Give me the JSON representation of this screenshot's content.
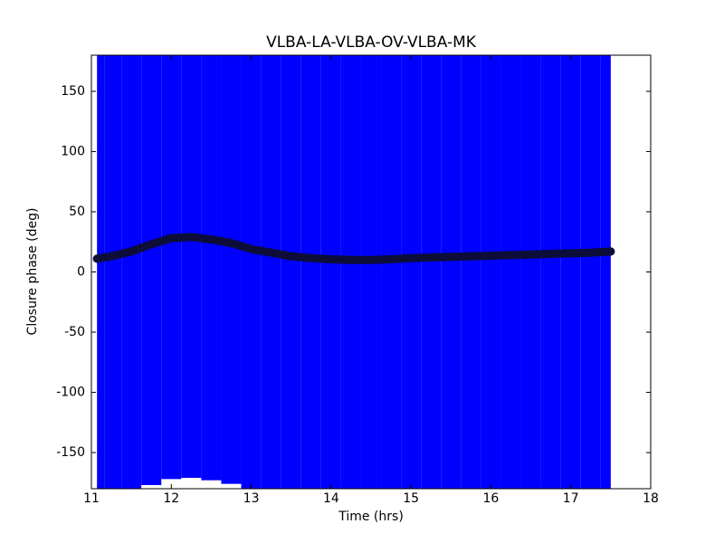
{
  "chart_data": {
    "type": "errorbar",
    "title": "VLBA-LA-VLBA-OV-VLBA-MK",
    "x_label": "Time (hrs)",
    "y_label": "Closure phase (deg)",
    "x": [
      11.07,
      11.25,
      11.5,
      11.75,
      12,
      12.25,
      12.5,
      12.75,
      13,
      13.25,
      13.5,
      13.75,
      14,
      14.25,
      14.5,
      14.75,
      15,
      15.25,
      15.5,
      15.75,
      16,
      16.25,
      16.5,
      16.75,
      17,
      17.25,
      17.5
    ],
    "values": [
      11,
      13,
      17,
      23,
      28,
      29,
      27,
      24,
      19,
      16,
      13,
      11.5,
      10.5,
      10,
      10,
      10.5,
      11.5,
      12,
      12.5,
      13,
      13.5,
      14,
      14.5,
      15,
      15.5,
      16,
      17
    ],
    "errors": [
      200,
      200,
      200,
      200,
      200,
      200,
      200,
      200,
      200,
      200,
      200,
      200,
      200,
      200,
      200,
      200,
      200,
      200,
      200,
      200,
      200,
      200,
      200,
      200,
      200,
      200,
      200
    ],
    "marker_color": "#0d0d3a",
    "error_color": "#0000ff",
    "xlim": [
      11,
      18
    ],
    "xticks": [
      11,
      12,
      13,
      14,
      15,
      16,
      17,
      18
    ],
    "ylim": [
      -180,
      180
    ],
    "yticks": [
      -150,
      -100,
      -50,
      0,
      50,
      100,
      150
    ]
  }
}
